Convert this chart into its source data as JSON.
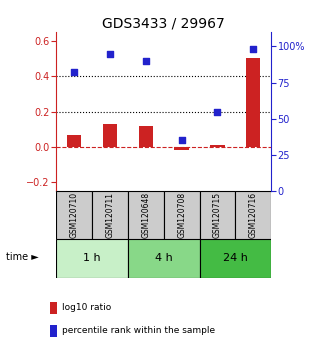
{
  "title": "GDS3433 / 29967",
  "samples": [
    "GSM120710",
    "GSM120711",
    "GSM120648",
    "GSM120708",
    "GSM120715",
    "GSM120716"
  ],
  "log10_ratio": [
    0.07,
    0.13,
    0.12,
    -0.02,
    0.01,
    0.5
  ],
  "percentile_rank": [
    82,
    95,
    90,
    35,
    55,
    98
  ],
  "time_groups": [
    {
      "label": "1 h",
      "indices": [
        0,
        1
      ],
      "color": "#c8f0c8"
    },
    {
      "label": "4 h",
      "indices": [
        2,
        3
      ],
      "color": "#88d888"
    },
    {
      "label": "24 h",
      "indices": [
        4,
        5
      ],
      "color": "#44bb44"
    }
  ],
  "bar_color": "#cc2222",
  "dot_color": "#2222cc",
  "ylim_left": [
    -0.25,
    0.65
  ],
  "ylim_right": [
    0,
    110
  ],
  "yticks_left": [
    -0.2,
    0.0,
    0.2,
    0.4,
    0.6
  ],
  "yticks_right": [
    0,
    25,
    50,
    75,
    100
  ],
  "ytick_labels_right": [
    "0",
    "25",
    "50",
    "75",
    "100%"
  ],
  "hlines": [
    0.4,
    0.2
  ],
  "legend_items": [
    {
      "label": "log10 ratio",
      "color": "#cc2222"
    },
    {
      "label": "percentile rank within the sample",
      "color": "#2222cc"
    }
  ],
  "background_color": "#ffffff",
  "sample_box_color": "#cccccc",
  "bar_width": 0.4,
  "dot_size": 20
}
